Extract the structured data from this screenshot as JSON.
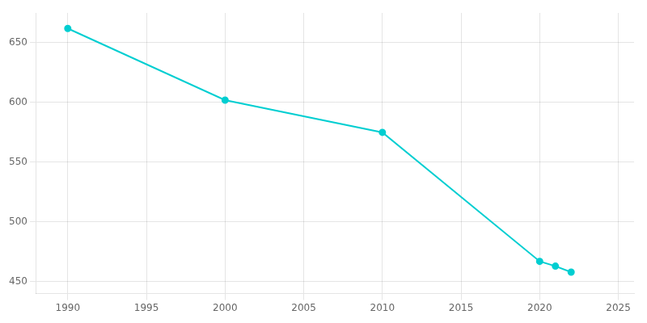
{
  "chart_data": {
    "type": "line",
    "x": [
      1990,
      2000,
      2010,
      2020,
      2021,
      2022
    ],
    "values": [
      662,
      602,
      575,
      467,
      463,
      458
    ],
    "color": "#00CED1",
    "marker": "circle",
    "xlim": [
      1988,
      2026
    ],
    "ylim": [
      440,
      675
    ],
    "xticks": [
      1990,
      1995,
      2000,
      2005,
      2010,
      2015,
      2020,
      2025
    ],
    "yticks": [
      450,
      500,
      550,
      600,
      650
    ],
    "grid": true
  }
}
